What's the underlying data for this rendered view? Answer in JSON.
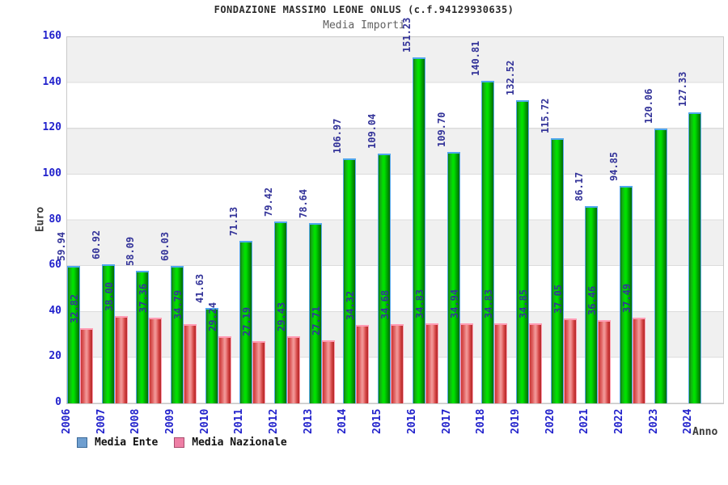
{
  "header": {
    "title": "FONDAZIONE MASSIMO LEONE ONLUS (c.f.94129930635)",
    "subtitle": "Media Importi"
  },
  "chart_data": {
    "type": "bar",
    "title": "FONDAZIONE MASSIMO LEONE ONLUS (c.f.94129930635)",
    "subtitle": "Media Importi",
    "xlabel": "Anno",
    "ylabel": "Euro",
    "ylim": [
      0,
      160
    ],
    "yticks": [
      0,
      20,
      40,
      60,
      80,
      100,
      120,
      140,
      160
    ],
    "grid": "horizontal-bands-every-20",
    "legend_position": "bottom-left",
    "categories": [
      "2006",
      "2007",
      "2008",
      "2009",
      "2010",
      "2011",
      "2012",
      "2013",
      "2014",
      "2015",
      "2016",
      "2017",
      "2018",
      "2019",
      "2020",
      "2021",
      "2022",
      "2023",
      "2024"
    ],
    "series": [
      {
        "name": "Media Ente",
        "bar_color": "#00cc00",
        "outline_color": "#58a9ea",
        "legend_color": "#6f9fd0",
        "values": [
          59.94,
          60.92,
          58.09,
          60.03,
          41.63,
          71.13,
          79.42,
          78.64,
          106.97,
          109.04,
          151.23,
          109.7,
          140.81,
          132.52,
          115.72,
          86.17,
          94.85,
          120.06,
          127.33
        ]
      },
      {
        "name": "Media Nazionale",
        "bar_color": "#dd5555",
        "outline_color": "#ff9cae",
        "legend_color": "#ee7fa5",
        "values": [
          32.82,
          38.0,
          37.36,
          34.79,
          29.24,
          27.19,
          29.43,
          27.71,
          34.32,
          34.68,
          34.83,
          34.94,
          34.83,
          34.85,
          37.05,
          36.46,
          37.49,
          null,
          null
        ]
      }
    ],
    "value_labels_format": "0.00",
    "colors": {
      "axis_tick_text": "#2222cc",
      "value_label_text": "#333399",
      "band_gray": "#f0f0f0",
      "band_white": "#ffffff",
      "plot_border": "#c9c9c9"
    }
  },
  "legend": {
    "items": [
      {
        "label": "Media Ente"
      },
      {
        "label": "Media Nazionale"
      }
    ]
  }
}
